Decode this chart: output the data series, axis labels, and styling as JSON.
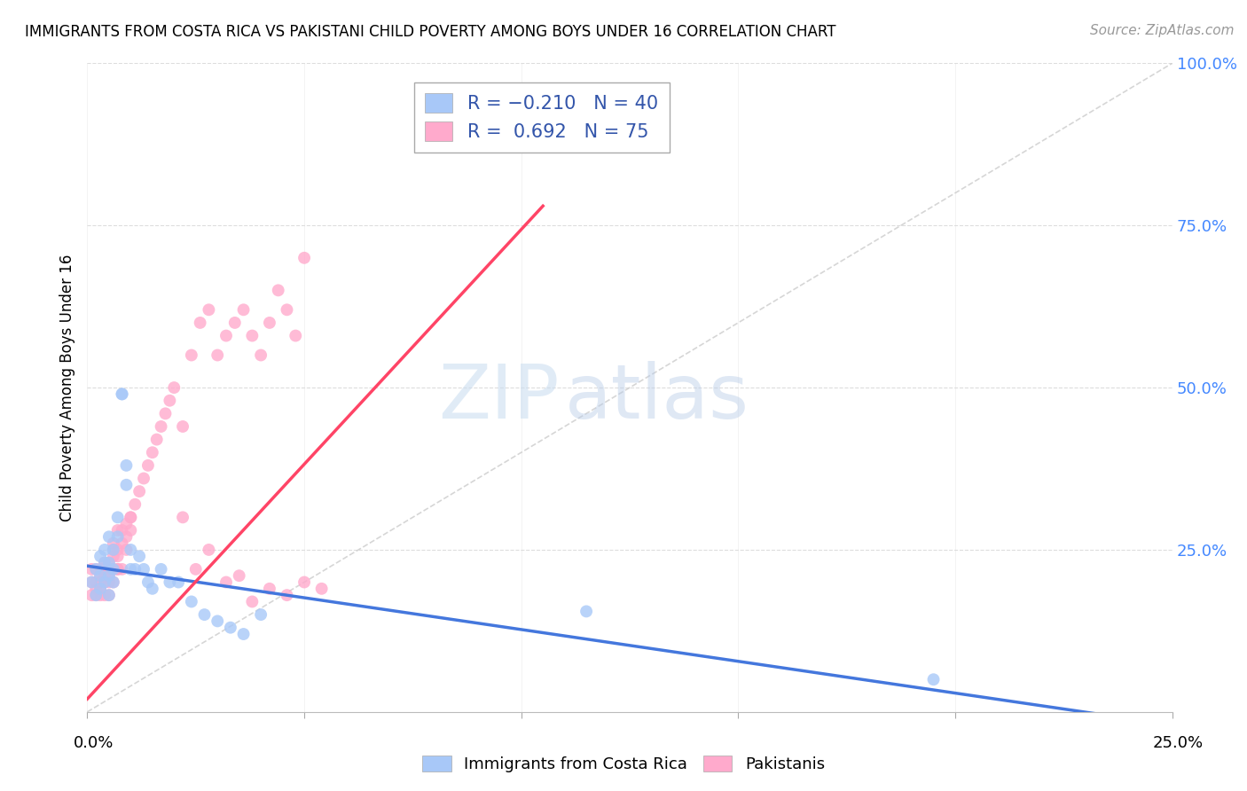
{
  "title": "IMMIGRANTS FROM COSTA RICA VS PAKISTANI CHILD POVERTY AMONG BOYS UNDER 16 CORRELATION CHART",
  "source": "Source: ZipAtlas.com",
  "ylabel": "Child Poverty Among Boys Under 16",
  "legend_group1": "Immigrants from Costa Rica",
  "legend_group2": "Pakistanis",
  "xlim": [
    0.0,
    0.25
  ],
  "ylim": [
    0.0,
    1.0
  ],
  "blue_color": "#a8c8f8",
  "pink_color": "#ffaacc",
  "blue_line_color": "#4477dd",
  "pink_line_color": "#ff4466",
  "diagonal_color": "#cccccc",
  "blue_line_x0": 0.0,
  "blue_line_y0": 0.225,
  "blue_line_x1": 0.25,
  "blue_line_y1": -0.02,
  "pink_line_x0": 0.0,
  "pink_line_y0": 0.02,
  "pink_line_x1": 0.105,
  "pink_line_y1": 0.78,
  "blue_scatter_x": [
    0.001,
    0.002,
    0.002,
    0.003,
    0.003,
    0.003,
    0.004,
    0.004,
    0.004,
    0.005,
    0.005,
    0.005,
    0.005,
    0.006,
    0.006,
    0.006,
    0.007,
    0.007,
    0.008,
    0.008,
    0.009,
    0.009,
    0.01,
    0.01,
    0.011,
    0.012,
    0.013,
    0.014,
    0.015,
    0.017,
    0.019,
    0.021,
    0.024,
    0.027,
    0.03,
    0.033,
    0.036,
    0.04,
    0.115,
    0.195
  ],
  "blue_scatter_y": [
    0.2,
    0.22,
    0.18,
    0.21,
    0.19,
    0.24,
    0.23,
    0.2,
    0.25,
    0.21,
    0.27,
    0.23,
    0.18,
    0.22,
    0.25,
    0.2,
    0.3,
    0.27,
    0.49,
    0.49,
    0.38,
    0.35,
    0.22,
    0.25,
    0.22,
    0.24,
    0.22,
    0.2,
    0.19,
    0.22,
    0.2,
    0.2,
    0.17,
    0.15,
    0.14,
    0.13,
    0.12,
    0.15,
    0.155,
    0.05
  ],
  "pink_scatter_x": [
    0.001,
    0.001,
    0.001,
    0.002,
    0.002,
    0.002,
    0.002,
    0.003,
    0.003,
    0.003,
    0.003,
    0.003,
    0.004,
    0.004,
    0.004,
    0.004,
    0.005,
    0.005,
    0.005,
    0.005,
    0.005,
    0.006,
    0.006,
    0.006,
    0.006,
    0.006,
    0.007,
    0.007,
    0.007,
    0.007,
    0.007,
    0.008,
    0.008,
    0.008,
    0.009,
    0.009,
    0.009,
    0.01,
    0.01,
    0.01,
    0.011,
    0.012,
    0.013,
    0.014,
    0.015,
    0.016,
    0.017,
    0.018,
    0.019,
    0.02,
    0.022,
    0.024,
    0.026,
    0.028,
    0.03,
    0.032,
    0.034,
    0.036,
    0.038,
    0.04,
    0.042,
    0.044,
    0.046,
    0.048,
    0.05,
    0.022,
    0.025,
    0.028,
    0.032,
    0.035,
    0.038,
    0.042,
    0.046,
    0.05,
    0.054
  ],
  "pink_scatter_y": [
    0.2,
    0.18,
    0.22,
    0.2,
    0.18,
    0.22,
    0.19,
    0.21,
    0.2,
    0.18,
    0.22,
    0.19,
    0.21,
    0.2,
    0.23,
    0.18,
    0.21,
    0.2,
    0.23,
    0.18,
    0.22,
    0.24,
    0.22,
    0.26,
    0.2,
    0.25,
    0.25,
    0.22,
    0.28,
    0.24,
    0.22,
    0.26,
    0.28,
    0.22,
    0.27,
    0.25,
    0.29,
    0.3,
    0.28,
    0.3,
    0.32,
    0.34,
    0.36,
    0.38,
    0.4,
    0.42,
    0.44,
    0.46,
    0.48,
    0.5,
    0.44,
    0.55,
    0.6,
    0.62,
    0.55,
    0.58,
    0.6,
    0.62,
    0.58,
    0.55,
    0.6,
    0.65,
    0.62,
    0.58,
    0.7,
    0.3,
    0.22,
    0.25,
    0.2,
    0.21,
    0.17,
    0.19,
    0.18,
    0.2,
    0.19
  ]
}
